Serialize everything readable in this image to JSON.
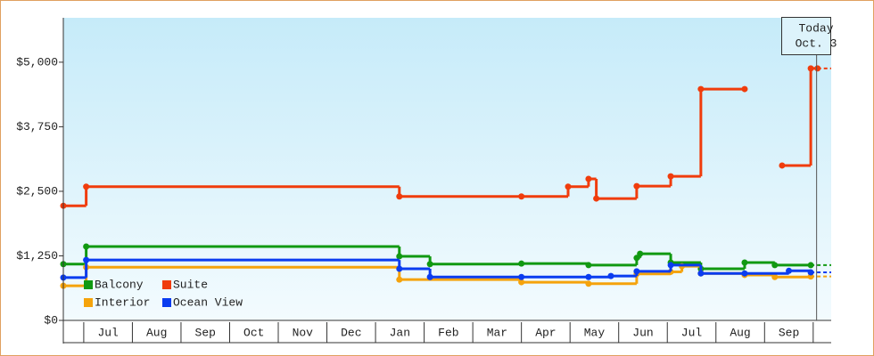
{
  "chart_data": {
    "type": "step",
    "ylim": [
      0,
      5860
    ],
    "yticks": [
      {
        "value": 0,
        "label": "$0"
      },
      {
        "value": 1250,
        "label": "$1,250"
      },
      {
        "value": 2500,
        "label": "$2,500"
      },
      {
        "value": 3750,
        "label": "$3,750"
      },
      {
        "value": 5000,
        "label": "$5,000"
      }
    ],
    "xlim": [
      -0.42,
      15.37
    ],
    "xticks": [
      {
        "value": 0.5,
        "label": "Jul"
      },
      {
        "value": 1.5,
        "label": "Aug"
      },
      {
        "value": 2.5,
        "label": "Sep"
      },
      {
        "value": 3.5,
        "label": "Oct"
      },
      {
        "value": 4.5,
        "label": "Nov"
      },
      {
        "value": 5.5,
        "label": "Dec"
      },
      {
        "value": 6.5,
        "label": "Jan"
      },
      {
        "value": 7.5,
        "label": "Feb"
      },
      {
        "value": 8.5,
        "label": "Mar"
      },
      {
        "value": 9.5,
        "label": "Apr"
      },
      {
        "value": 10.5,
        "label": "May"
      },
      {
        "value": 11.5,
        "label": "Jun"
      },
      {
        "value": 12.5,
        "label": "Jul"
      },
      {
        "value": 13.5,
        "label": "Aug"
      },
      {
        "value": 14.5,
        "label": "Sep"
      }
    ],
    "legend": "lower left",
    "today": {
      "x": 15.07,
      "lines": [
        "Today",
        "Oct. 3"
      ]
    },
    "series": [
      {
        "name": "Balcony",
        "color": "#119911",
        "x": [
          -0.42,
          0.05,
          6.49,
          7.12,
          9.0,
          10.38,
          11.37,
          11.44,
          12.07,
          12.69,
          13.59,
          14.21,
          14.95
        ],
        "values": [
          1090,
          1430,
          1240,
          1090,
          1100,
          1070,
          1210,
          1290,
          1120,
          1000,
          1120,
          1070,
          1070
        ]
      },
      {
        "name": "Suite",
        "color": "#f03c0c",
        "x": [
          -0.42,
          0.05,
          6.49,
          9.0,
          9.96,
          10.38,
          10.54,
          11.37,
          12.07,
          12.69,
          13.59,
          null,
          14.36,
          14.95,
          15.09
        ],
        "values": [
          2220,
          2590,
          2400,
          2400,
          2590,
          2740,
          2360,
          2600,
          2790,
          4480,
          4480,
          null,
          3000,
          4880,
          4880
        ]
      },
      {
        "name": "Interior",
        "color": "#f5a30c",
        "x": [
          -0.42,
          0.05,
          6.49,
          9.0,
          10.38,
          11.37,
          12.07,
          12.3,
          12.69,
          13.59,
          14.21,
          14.95
        ],
        "values": [
          670,
          1030,
          790,
          740,
          710,
          900,
          940,
          1050,
          910,
          880,
          840,
          850
        ]
      },
      {
        "name": "Ocean View",
        "color": "#0a3cf0",
        "x": [
          -0.42,
          0.05,
          6.49,
          7.12,
          9.0,
          10.38,
          10.84,
          11.37,
          12.07,
          12.69,
          13.59,
          14.5,
          14.95
        ],
        "values": [
          830,
          1170,
          1000,
          840,
          840,
          840,
          860,
          950,
          1070,
          910,
          910,
          960,
          930
        ]
      }
    ]
  }
}
